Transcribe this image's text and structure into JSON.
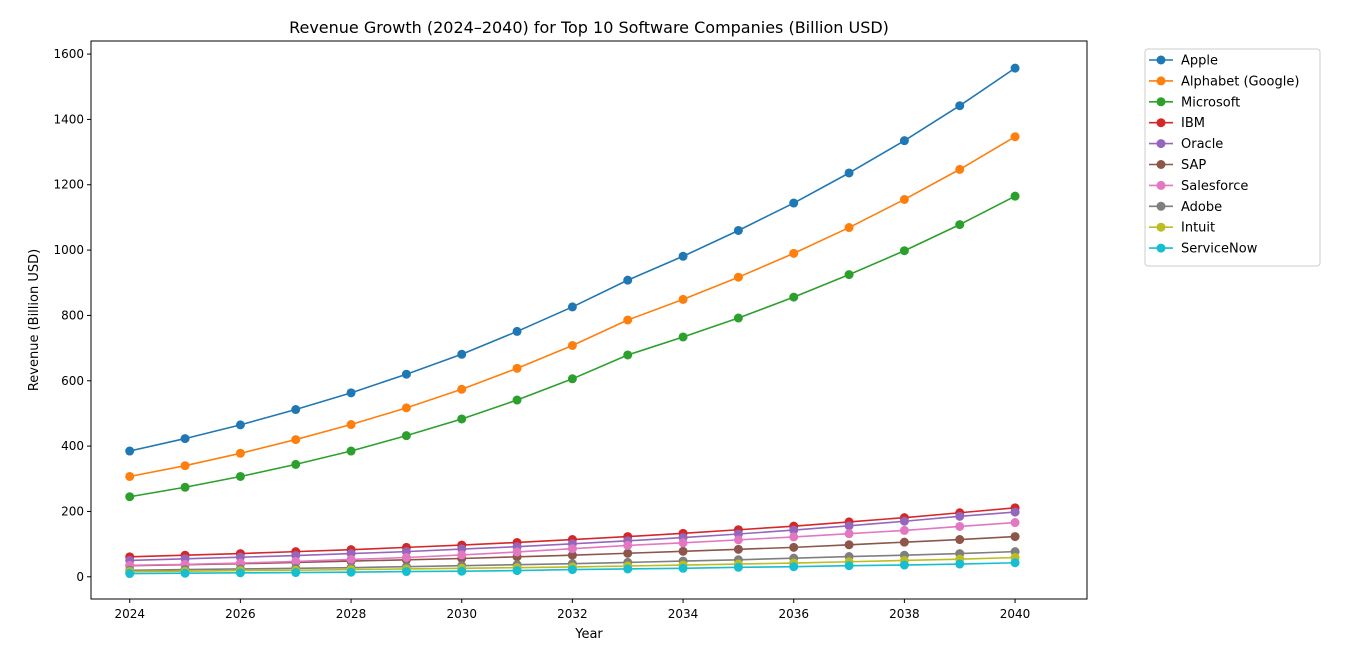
{
  "chart_data": {
    "type": "line",
    "title": "Revenue Growth (2024–2040) for Top 10 Software Companies (Billion USD)",
    "xlabel": "Year",
    "ylabel": "Revenue (Billion USD)",
    "x": [
      2024,
      2025,
      2026,
      2027,
      2028,
      2029,
      2030,
      2031,
      2032,
      2033,
      2034,
      2035,
      2036,
      2037,
      2038,
      2039,
      2040
    ],
    "xticks": [
      "2024",
      "2026",
      "2028",
      "2030",
      "2032",
      "2034",
      "2036",
      "2038",
      "2040"
    ],
    "yticks": [
      "0",
      "200",
      "400",
      "600",
      "800",
      "1000",
      "1200",
      "1400",
      "1600"
    ],
    "xlim": [
      2023.3,
      2041.3
    ],
    "ylim": [
      -68,
      1640
    ],
    "grid": false,
    "legend_position": "outside-top-right",
    "series": [
      {
        "name": "Apple",
        "color": "#1f77b4",
        "values": [
          385,
          423,
          465,
          512,
          563,
          620,
          681,
          751,
          826,
          908,
          981,
          1060,
          1144,
          1236,
          1335,
          1442,
          1557
        ]
      },
      {
        "name": "Alphabet (Google)",
        "color": "#ff7f0e",
        "values": [
          307,
          340,
          378,
          420,
          466,
          517,
          574,
          638,
          708,
          786,
          849,
          917,
          990,
          1069,
          1155,
          1247,
          1347
        ]
      },
      {
        "name": "Microsoft",
        "color": "#2ca02c",
        "values": [
          245,
          274,
          307,
          344,
          385,
          432,
          483,
          541,
          606,
          679,
          734,
          792,
          856,
          925,
          998,
          1078,
          1165
        ]
      },
      {
        "name": "IBM",
        "color": "#d62728",
        "values": [
          61,
          66,
          71,
          77,
          83,
          90,
          97,
          105,
          114,
          123,
          133,
          144,
          155,
          168,
          181,
          196,
          211
        ]
      },
      {
        "name": "Oracle",
        "color": "#9467bd",
        "values": [
          50,
          55,
          60,
          65,
          71,
          77,
          85,
          92,
          101,
          110,
          120,
          131,
          143,
          156,
          170,
          185,
          198
        ]
      },
      {
        "name": "SAP",
        "color": "#8c564b",
        "values": [
          34,
          37,
          40,
          44,
          48,
          52,
          56,
          61,
          66,
          72,
          78,
          84,
          90,
          98,
          106,
          114,
          123
        ]
      },
      {
        "name": "Salesforce",
        "color": "#e377c2",
        "values": [
          35,
          38,
          42,
          47,
          53,
          59,
          67,
          76,
          86,
          96,
          104,
          113,
          122,
          132,
          142,
          154,
          166
        ]
      },
      {
        "name": "Adobe",
        "color": "#7f7f7f",
        "values": [
          20,
          22,
          24,
          26,
          28,
          31,
          34,
          37,
          40,
          44,
          48,
          52,
          57,
          62,
          66,
          71,
          77
        ]
      },
      {
        "name": "Intuit",
        "color": "#bcbd22",
        "values": [
          16,
          17,
          19,
          20,
          22,
          24,
          26,
          28,
          30,
          33,
          36,
          39,
          42,
          46,
          50,
          54,
          59
        ]
      },
      {
        "name": "ServiceNow",
        "color": "#17becf",
        "values": [
          10,
          11,
          12,
          13,
          14,
          16,
          17,
          19,
          22,
          24,
          26,
          29,
          31,
          34,
          36,
          39,
          43
        ]
      }
    ]
  }
}
